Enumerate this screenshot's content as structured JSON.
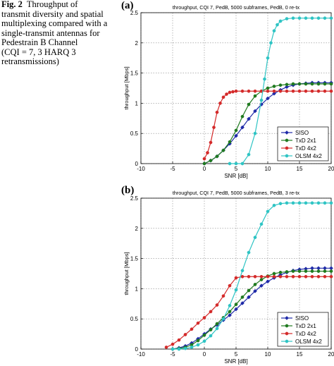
{
  "caption": {
    "fig_label": "Fig. 2",
    "lines": [
      "Throughput of",
      "transmit diversity and spatial",
      "multiplexing compared with a",
      "single-transmit antennas for",
      "Pedestrain B Channel",
      "(CQI = 7, 3 HARQ 3",
      "retransmissions)"
    ]
  },
  "colors": {
    "siso": "#1f2aa8",
    "txd2x1": "#1f7a1f",
    "txd4x2": "#d42a2a",
    "olsm4x2": "#2ec4c4"
  },
  "chart_data": [
    {
      "panel": "(a)",
      "type": "line",
      "title": "throughput, CQI 7, PedB, 5000 subframes, PedB, 0 re-tx",
      "xlabel": "SNR [dB]",
      "ylabel": "throughput [Mbps]",
      "xlim": [
        -10,
        20
      ],
      "ylim": [
        0,
        2.5
      ],
      "xticks": [
        -10,
        -5,
        0,
        5,
        10,
        15,
        20
      ],
      "yticks": [
        0,
        0.5,
        1,
        1.5,
        2,
        2.5
      ],
      "grid": true,
      "legend_position": "bottom-right",
      "series": [
        {
          "name": "SISO",
          "color": "#1f2aa8",
          "x": [
            0,
            1,
            2,
            3,
            4,
            5,
            6,
            7,
            8,
            9,
            10,
            11,
            12,
            13,
            14,
            15,
            16,
            17,
            18,
            19,
            20
          ],
          "y": [
            0.0,
            0.05,
            0.12,
            0.22,
            0.33,
            0.46,
            0.6,
            0.74,
            0.87,
            0.98,
            1.08,
            1.16,
            1.22,
            1.27,
            1.3,
            1.32,
            1.33,
            1.34,
            1.34,
            1.34,
            1.34
          ]
        },
        {
          "name": "TxD 2x1",
          "color": "#1f7a1f",
          "x": [
            0,
            1,
            2,
            3,
            4,
            5,
            6,
            7,
            8,
            9,
            10,
            11,
            12,
            13,
            14,
            15,
            16,
            17,
            18,
            19,
            20
          ],
          "y": [
            0.0,
            0.05,
            0.12,
            0.22,
            0.36,
            0.55,
            0.78,
            0.98,
            1.12,
            1.2,
            1.25,
            1.28,
            1.3,
            1.31,
            1.32,
            1.32,
            1.32,
            1.32,
            1.32,
            1.32,
            1.32
          ]
        },
        {
          "name": "TxD 4x2",
          "color": "#d42a2a",
          "x": [
            0,
            0.5,
            1,
            1.5,
            2,
            2.5,
            3,
            3.5,
            4,
            4.5,
            5,
            6,
            7,
            8,
            9,
            10,
            11,
            12,
            13,
            14,
            15,
            16,
            17,
            18,
            19,
            20
          ],
          "y": [
            0.08,
            0.18,
            0.35,
            0.6,
            0.85,
            1.0,
            1.1,
            1.15,
            1.18,
            1.19,
            1.2,
            1.2,
            1.2,
            1.2,
            1.2,
            1.2,
            1.2,
            1.2,
            1.2,
            1.2,
            1.2,
            1.2,
            1.2,
            1.2,
            1.2,
            1.2
          ]
        },
        {
          "name": "OLSM 4x2",
          "color": "#2ec4c4",
          "x": [
            4,
            5,
            6,
            7,
            8,
            9,
            9.5,
            10,
            10.5,
            11,
            11.5,
            12,
            13,
            14,
            15,
            16,
            17,
            18,
            19,
            20
          ],
          "y": [
            0.0,
            0.0,
            0.0,
            0.15,
            0.5,
            1.05,
            1.4,
            1.75,
            2.0,
            2.2,
            2.3,
            2.36,
            2.4,
            2.41,
            2.41,
            2.41,
            2.41,
            2.41,
            2.41,
            2.41
          ]
        }
      ]
    },
    {
      "panel": "(b)",
      "type": "line",
      "title": "throughput, CQI 7, PedB, 5000 subframes, PedB, 3 re-tx",
      "xlabel": "SNR [dB]",
      "ylabel": "throughput [Mbps]",
      "xlim": [
        -10,
        20
      ],
      "ylim": [
        0,
        2.5
      ],
      "xticks": [
        -10,
        -5,
        0,
        5,
        10,
        15,
        20
      ],
      "yticks": [
        0,
        0.5,
        1,
        1.5,
        2,
        2.5
      ],
      "grid": true,
      "legend_position": "bottom-right",
      "series": [
        {
          "name": "SISO",
          "color": "#1f2aa8",
          "x": [
            -5,
            -4,
            -3,
            -2,
            -1,
            0,
            1,
            2,
            3,
            4,
            5,
            6,
            7,
            8,
            9,
            10,
            11,
            12,
            13,
            14,
            15,
            16,
            17,
            18,
            19,
            20
          ],
          "y": [
            0.0,
            0.02,
            0.05,
            0.1,
            0.17,
            0.25,
            0.33,
            0.4,
            0.48,
            0.56,
            0.66,
            0.76,
            0.86,
            0.96,
            1.05,
            1.12,
            1.18,
            1.23,
            1.27,
            1.3,
            1.32,
            1.33,
            1.34,
            1.34,
            1.34,
            1.34
          ]
        },
        {
          "name": "TxD 2x1",
          "color": "#1f7a1f",
          "x": [
            -5,
            -4,
            -3,
            -2,
            -1,
            0,
            1,
            2,
            3,
            4,
            5,
            6,
            7,
            8,
            9,
            10,
            11,
            12,
            13,
            14,
            15,
            16,
            17,
            18,
            19,
            20
          ],
          "y": [
            0.0,
            0.01,
            0.03,
            0.07,
            0.14,
            0.23,
            0.32,
            0.42,
            0.52,
            0.62,
            0.74,
            0.86,
            0.97,
            1.07,
            1.15,
            1.21,
            1.25,
            1.27,
            1.28,
            1.29,
            1.29,
            1.29,
            1.29,
            1.29,
            1.29,
            1.29
          ]
        },
        {
          "name": "TxD 4x2",
          "color": "#d42a2a",
          "x": [
            -6,
            -5,
            -4,
            -3,
            -2,
            -1,
            0,
            1,
            2,
            3,
            4,
            5,
            6,
            7,
            8,
            9,
            10,
            11,
            12,
            13,
            14,
            15,
            16,
            17,
            18,
            19,
            20
          ],
          "y": [
            0.03,
            0.08,
            0.15,
            0.24,
            0.33,
            0.43,
            0.52,
            0.62,
            0.73,
            0.88,
            1.05,
            1.18,
            1.2,
            1.2,
            1.2,
            1.2,
            1.2,
            1.2,
            1.2,
            1.2,
            1.2,
            1.2,
            1.2,
            1.2,
            1.2,
            1.2,
            1.2
          ]
        },
        {
          "name": "OLSM 4x2",
          "color": "#2ec4c4",
          "x": [
            -5,
            -4,
            -3,
            -2,
            -1,
            0,
            1,
            2,
            3,
            4,
            5,
            6,
            7,
            8,
            9,
            10,
            11,
            12,
            13,
            14,
            15,
            16,
            17,
            18,
            19,
            20
          ],
          "y": [
            0.0,
            0.0,
            0.01,
            0.03,
            0.07,
            0.13,
            0.22,
            0.34,
            0.5,
            0.72,
            0.98,
            1.3,
            1.6,
            1.85,
            2.07,
            2.28,
            2.38,
            2.41,
            2.42,
            2.42,
            2.42,
            2.42,
            2.42,
            2.42,
            2.42,
            2.42
          ]
        }
      ]
    }
  ]
}
